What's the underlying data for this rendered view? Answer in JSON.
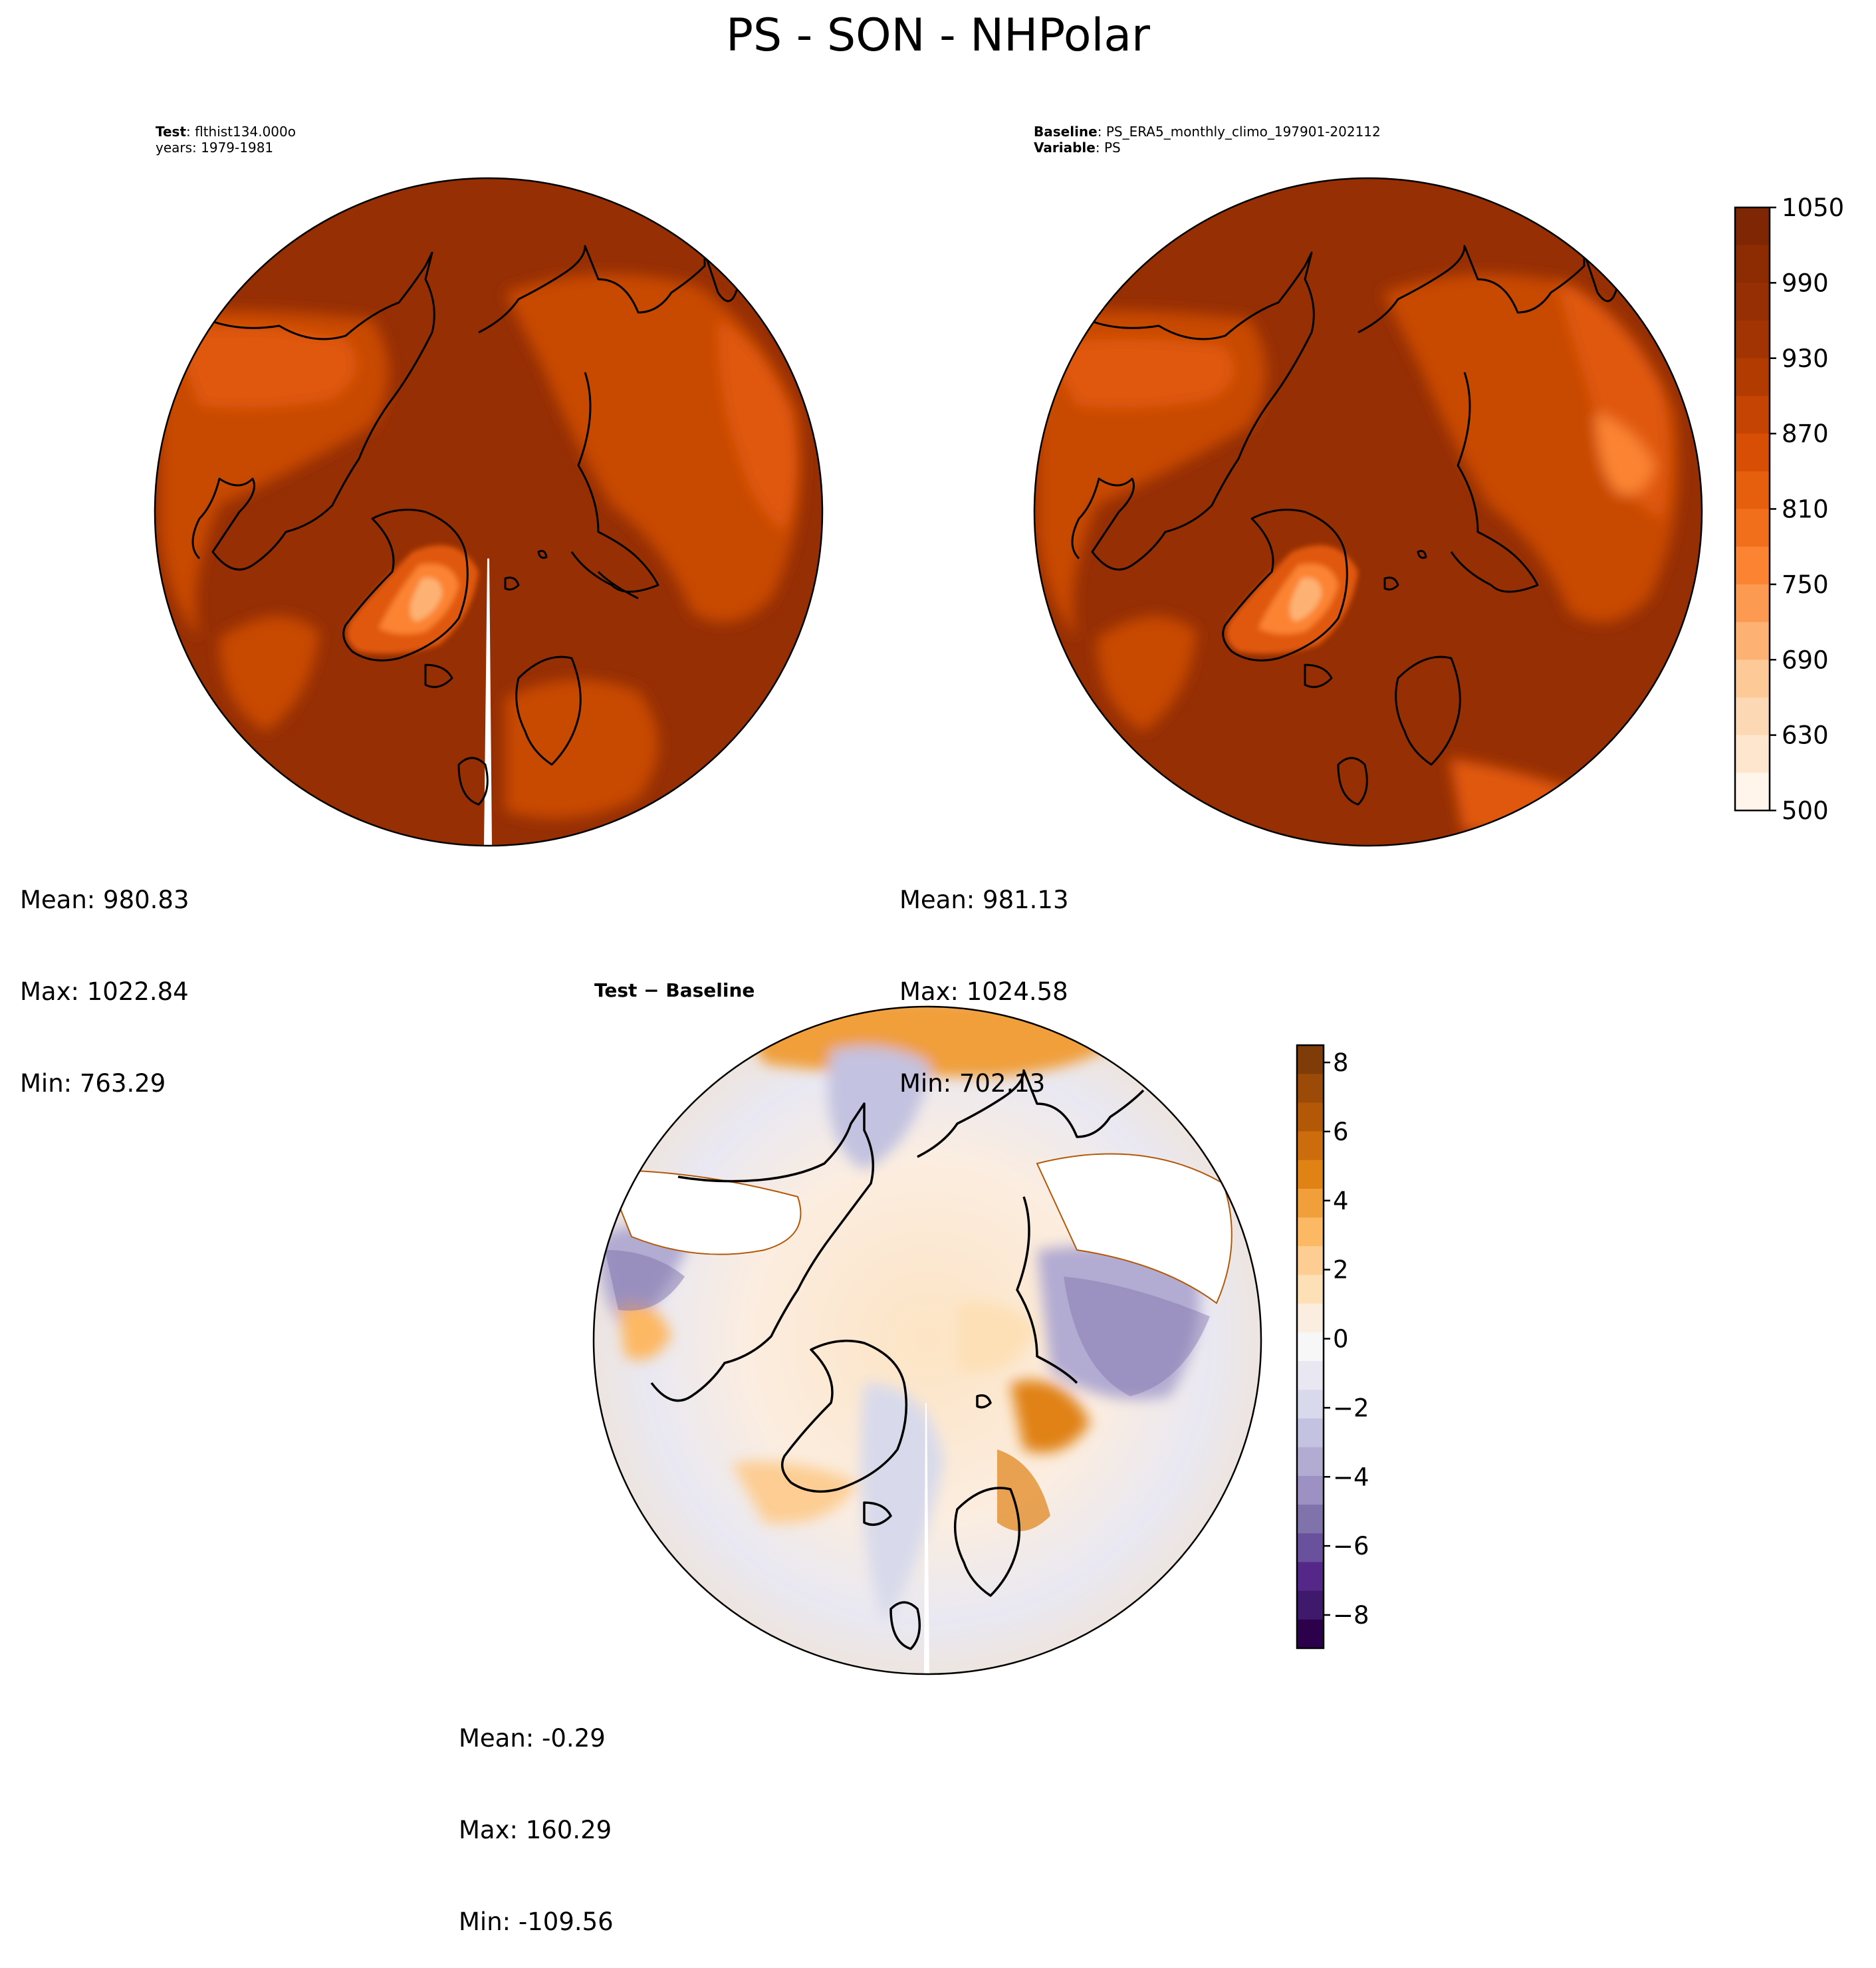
{
  "figure": {
    "title": "PS - SON - NHPolar"
  },
  "test_panel": {
    "label_bold": "Test",
    "label_text": ": flthist134.000o",
    "years": "years: 1979-1981",
    "stats": {
      "mean": "Mean: 980.83",
      "max": "Max: 1022.84",
      "min": "Min: 763.29"
    }
  },
  "baseline_panel": {
    "label_bold": "Baseline",
    "label_text": ": PS_ERA5_monthly_climo_197901-202112",
    "variable_bold": "Variable",
    "variable_text": ": PS",
    "stats": {
      "mean": "Mean: 981.13",
      "max": "Max: 1024.58",
      "min": "Min: 702.13"
    }
  },
  "diff_panel": {
    "title": "Test − Baseline",
    "stats": {
      "mean": "Mean: -0.29",
      "max": "Max: 160.29",
      "min": "Min: -109.56"
    }
  },
  "colorbars": {
    "main": {
      "ticks": [
        "500",
        "630",
        "690",
        "750",
        "810",
        "870",
        "930",
        "990",
        "1050"
      ],
      "colors_bottom_to_top": [
        "#fff5eb",
        "#fee6ce",
        "#fdd8b5",
        "#fdc997",
        "#fdb273",
        "#fd9a51",
        "#fb8331",
        "#f16f1b",
        "#e65f0d",
        "#d94e05",
        "#c54403",
        "#b23b02",
        "#a23403",
        "#962f03",
        "#8d2c03",
        "#7f2704"
      ]
    },
    "diff": {
      "ticks": [
        "8",
        "6",
        "4",
        "2",
        "0",
        "−2",
        "−4",
        "−6",
        "−8"
      ],
      "colors_top_to_bottom": [
        "#7f3b08",
        "#9b4a07",
        "#b35806",
        "#cc6c0d",
        "#e08214",
        "#f09f3a",
        "#fdb863",
        "#fdcd93",
        "#fee0b6",
        "#fbede0",
        "#f7f7f7",
        "#e9e8f2",
        "#d8daeb",
        "#c3c2e0",
        "#b2abd2",
        "#9d91c4",
        "#8073ac",
        "#6a519d",
        "#542788",
        "#3f1a6c",
        "#2d004b"
      ]
    }
  },
  "map_colors": {
    "ocean_main": "#962f03",
    "land_mid": "#c84803",
    "highland": "#e0580a",
    "greenland_core": "#fdb273",
    "coastline": "#000000"
  }
}
